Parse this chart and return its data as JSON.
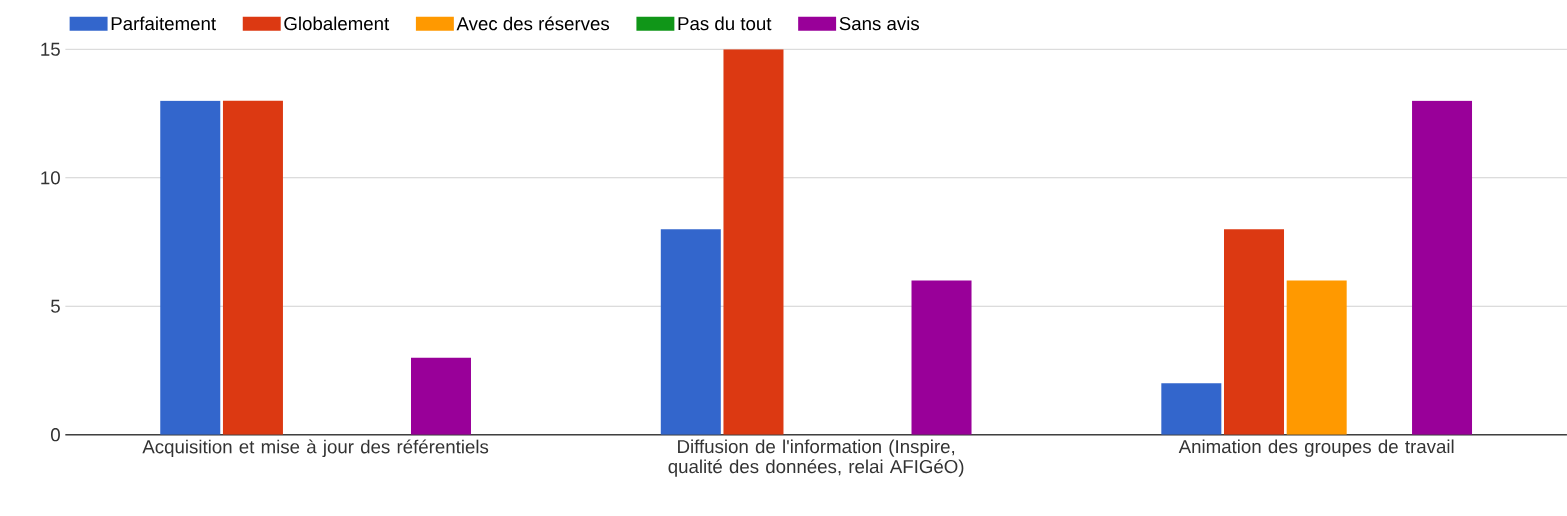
{
  "chart_data": {
    "type": "bar",
    "categories": [
      "Acquisition et mise à jour des référentiels",
      "Diffusion de l'information (Inspire, qualité des données, relai AFIGéO)",
      "Animation des groupes de travail"
    ],
    "series": [
      {
        "name": "Parfaitement",
        "color": "#3366cc",
        "values": [
          13,
          8,
          2
        ]
      },
      {
        "name": "Globalement",
        "color": "#dc3912",
        "values": [
          13,
          15,
          8
        ]
      },
      {
        "name": "Avec des réserves",
        "color": "#ff9900",
        "values": [
          0,
          0,
          6
        ]
      },
      {
        "name": "Pas du tout",
        "color": "#109618",
        "values": [
          0,
          0,
          0
        ]
      },
      {
        "name": "Sans avis",
        "color": "#990099",
        "values": [
          3,
          6,
          13
        ]
      }
    ],
    "ylim": [
      0,
      15
    ],
    "yticks": [
      0,
      5,
      10,
      15
    ],
    "grid": "y",
    "legend": "top left"
  }
}
